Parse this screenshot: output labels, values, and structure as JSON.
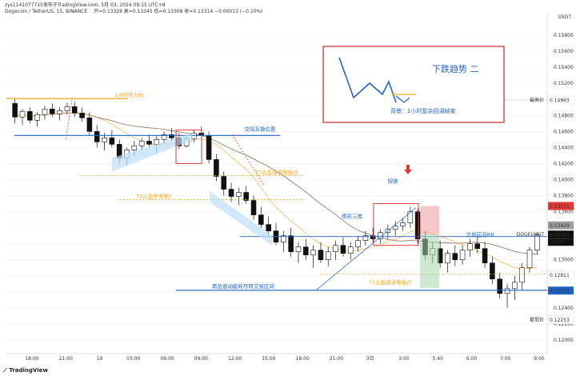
{
  "header": {
    "line1": "zys1141077715发布于TradingView.com, 5月 03, 2024 09:15 UTC+8",
    "pair": "Dogecoin / TetherUS, 15, BINANCE",
    "ohlc": "开=0.13328 高=0.13345 低=0.13308 收=0.13314 −0.00013 (−0.10%)"
  },
  "currency": "USDT",
  "footer": {
    "logo": "TradingView"
  },
  "colors": {
    "up": "#111111",
    "down": "#111111",
    "accent_red": "#e53935",
    "orange": "#f5a623",
    "blue": "#1e64c8",
    "green": "#2e7d32"
  },
  "chart_data": {
    "type": "candlestick",
    "title": "Dogecoin / TetherUS, 15, BINANCE",
    "x_tick_labels": [
      "18:00",
      "21:00",
      "19",
      "03:00",
      "06:00",
      "09:00",
      "12:00",
      "15:00",
      "18:00",
      "21:00",
      "3日",
      "3:00",
      "5:40",
      "6:00",
      "7:00",
      "9:00"
    ],
    "y_ticks": [
      0.158,
      0.156,
      0.154,
      0.152,
      0.15,
      0.148,
      0.146,
      0.144,
      0.142,
      0.14,
      0.138,
      0.136,
      0.134,
      0.132,
      0.13,
      0.128,
      0.126,
      0.124,
      0.122,
      0.12
    ],
    "ylim": [
      0.1185,
      0.16
    ],
    "price_labels": [
      {
        "text": "最高价",
        "value": 0.14993,
        "price": "0.14993",
        "bg": "#ffffff",
        "fg": "#333333"
      },
      {
        "text": "",
        "value": 0.13671,
        "price": "0.13671",
        "bg": "#e53935",
        "fg": "#ffffff"
      },
      {
        "text": "",
        "value": 0.13429,
        "price": "0.13429",
        "bg": "#9e9e9e",
        "fg": "#ffffff"
      },
      {
        "text": "DOGEUSDT",
        "value": 0.13314,
        "price": "0.13314",
        "bg": "#111111",
        "fg": "#ffffff",
        "sub": "14:57"
      },
      {
        "text": "",
        "value": 0.12811,
        "price": "0.12811",
        "bg": "#ffffff",
        "fg": "#f5a623"
      },
      {
        "text": "",
        "value": 0.12616,
        "price": "0.12616",
        "bg": "#1e64c8",
        "fg": "#ffffff"
      },
      {
        "text": "最低价",
        "value": 0.12253,
        "price": "0.12253",
        "bg": "#ffffff",
        "fg": "#333333"
      }
    ],
    "annotations": [
      {
        "text": "1小时阻力位",
        "color": "#f5a623",
        "x": 0.2,
        "y": 0.1501
      },
      {
        "text": "交阻互换位置",
        "color": "#1e64c8",
        "x": 0.44,
        "y": 0.1459
      },
      {
        "text": "T1止盈通道极值点",
        "color": "#f5a623",
        "x": 0.46,
        "y": 0.1405
      },
      {
        "text": "T2止盈参考脚2",
        "color": "#f5a623",
        "x": 0.24,
        "y": 0.1375
      },
      {
        "text": "再急速动能耗尽转交易区间",
        "color": "#1e64c8",
        "x": 0.38,
        "y": 0.1263
      },
      {
        "text": "T1止盈通道极值点",
        "color": "#f5a623",
        "x": 0.67,
        "y": 0.1268
      },
      {
        "text": "交易区间RB",
        "color": "#1e64c8",
        "x": 0.85,
        "y": 0.1327
      },
      {
        "text": "楔形三推",
        "color": "#1e64c8",
        "x": 0.62,
        "y": 0.135
      },
      {
        "text": "假破",
        "color": "#1e64c8",
        "x": 0.705,
        "y": 0.1394
      }
    ],
    "inset": {
      "title": "下跌趋势 二",
      "note": "背景：1小时复杂回调结束"
    },
    "candles": [
      [
        0.1495,
        0.15,
        0.147,
        0.1478
      ],
      [
        0.1478,
        0.1488,
        0.1468,
        0.1485
      ],
      [
        0.1485,
        0.149,
        0.147,
        0.1474
      ],
      [
        0.1474,
        0.1484,
        0.1466,
        0.1481
      ],
      [
        0.1481,
        0.1492,
        0.1475,
        0.1488
      ],
      [
        0.1488,
        0.1495,
        0.1478,
        0.1482
      ],
      [
        0.1482,
        0.149,
        0.1474,
        0.1486
      ],
      [
        0.1486,
        0.1496,
        0.1481,
        0.1491
      ],
      [
        0.1491,
        0.1497,
        0.1478,
        0.1483
      ],
      [
        0.1483,
        0.149,
        0.1472,
        0.1477
      ],
      [
        0.1477,
        0.1484,
        0.1455,
        0.146
      ],
      [
        0.146,
        0.1468,
        0.144,
        0.1447
      ],
      [
        0.1447,
        0.1458,
        0.1436,
        0.1452
      ],
      [
        0.1452,
        0.1462,
        0.144,
        0.1444
      ],
      [
        0.1444,
        0.145,
        0.142,
        0.1427
      ],
      [
        0.1427,
        0.144,
        0.1418,
        0.1437
      ],
      [
        0.1437,
        0.1448,
        0.143,
        0.1442
      ],
      [
        0.1442,
        0.1452,
        0.1436,
        0.1448
      ],
      [
        0.1448,
        0.1456,
        0.144,
        0.1444
      ],
      [
        0.1444,
        0.1454,
        0.1432,
        0.145
      ],
      [
        0.145,
        0.146,
        0.1445,
        0.1456
      ],
      [
        0.1456,
        0.1464,
        0.1448,
        0.1452
      ],
      [
        0.1452,
        0.1458,
        0.1438,
        0.1442
      ],
      [
        0.1442,
        0.1455,
        0.144,
        0.1451
      ],
      [
        0.1451,
        0.1462,
        0.1446,
        0.1458
      ],
      [
        0.1458,
        0.1466,
        0.145,
        0.1455
      ],
      [
        0.1455,
        0.146,
        0.142,
        0.1425
      ],
      [
        0.1425,
        0.1432,
        0.1398,
        0.1404
      ],
      [
        0.1404,
        0.141,
        0.138,
        0.1388
      ],
      [
        0.1388,
        0.1396,
        0.1372,
        0.1379
      ],
      [
        0.1379,
        0.139,
        0.1368,
        0.1384
      ],
      [
        0.1384,
        0.1392,
        0.137,
        0.1374
      ],
      [
        0.1374,
        0.138,
        0.135,
        0.1356
      ],
      [
        0.1356,
        0.1366,
        0.134,
        0.1344
      ],
      [
        0.1344,
        0.1354,
        0.133,
        0.1336
      ],
      [
        0.1336,
        0.1346,
        0.1318,
        0.1322
      ],
      [
        0.1322,
        0.1336,
        0.131,
        0.133
      ],
      [
        0.133,
        0.134,
        0.1304,
        0.131
      ],
      [
        0.131,
        0.1322,
        0.1296,
        0.1316
      ],
      [
        0.1316,
        0.1326,
        0.13,
        0.1306
      ],
      [
        0.1306,
        0.1318,
        0.129,
        0.1312
      ],
      [
        0.1312,
        0.1322,
        0.1296,
        0.13
      ],
      [
        0.13,
        0.1316,
        0.1292,
        0.131
      ],
      [
        0.131,
        0.1324,
        0.13,
        0.1318
      ],
      [
        0.1318,
        0.1328,
        0.1304,
        0.1308
      ],
      [
        0.1308,
        0.1322,
        0.13,
        0.1316
      ],
      [
        0.1316,
        0.133,
        0.131,
        0.1324
      ],
      [
        0.1324,
        0.1336,
        0.1318,
        0.133
      ],
      [
        0.133,
        0.134,
        0.1322,
        0.1326
      ],
      [
        0.1326,
        0.1338,
        0.132,
        0.1334
      ],
      [
        0.1334,
        0.1344,
        0.1326,
        0.1338
      ],
      [
        0.1338,
        0.1348,
        0.133,
        0.1342
      ],
      [
        0.1342,
        0.1352,
        0.1336,
        0.1346
      ],
      [
        0.1346,
        0.1366,
        0.134,
        0.136
      ],
      [
        0.136,
        0.1364,
        0.132,
        0.1326
      ],
      [
        0.1326,
        0.1336,
        0.13,
        0.1306
      ],
      [
        0.1306,
        0.1322,
        0.1296,
        0.1314
      ],
      [
        0.1314,
        0.1324,
        0.129,
        0.1296
      ],
      [
        0.1296,
        0.1312,
        0.1284,
        0.1308
      ],
      [
        0.1308,
        0.1318,
        0.1292,
        0.13
      ],
      [
        0.13,
        0.1318,
        0.1294,
        0.1312
      ],
      [
        0.1312,
        0.1326,
        0.1304,
        0.132
      ],
      [
        0.132,
        0.133,
        0.1308,
        0.1314
      ],
      [
        0.1314,
        0.1322,
        0.129,
        0.1296
      ],
      [
        0.1296,
        0.1304,
        0.127,
        0.1276
      ],
      [
        0.1276,
        0.1284,
        0.1252,
        0.1258
      ],
      [
        0.1258,
        0.127,
        0.124,
        0.1264
      ],
      [
        0.1264,
        0.128,
        0.125,
        0.1272
      ],
      [
        0.1272,
        0.1296,
        0.1262,
        0.129
      ],
      [
        0.129,
        0.1316,
        0.1284,
        0.1312
      ],
      [
        0.1312,
        0.1334,
        0.1306,
        0.1331
      ]
    ]
  }
}
